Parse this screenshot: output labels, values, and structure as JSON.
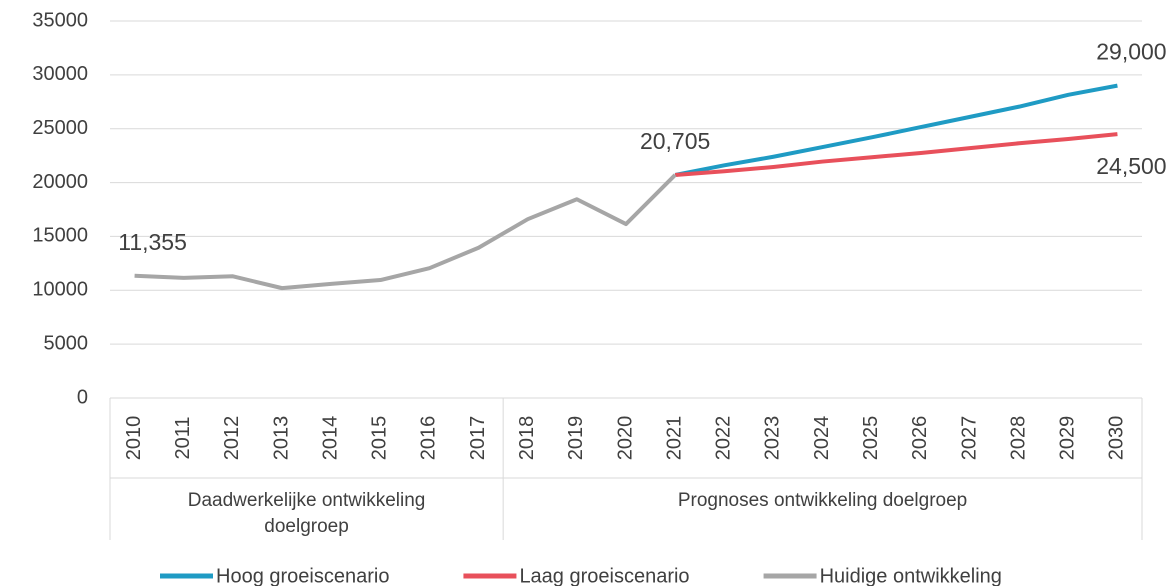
{
  "chart_data": {
    "type": "line",
    "categories": [
      "2010",
      "2011",
      "2012",
      "2013",
      "2014",
      "2015",
      "2016",
      "2017",
      "2018",
      "2019",
      "2020",
      "2021",
      "2022",
      "2023",
      "2024",
      "2025",
      "2026",
      "2027",
      "2028",
      "2029",
      "2030"
    ],
    "groups": [
      {
        "label": "Daadwerkelijke ontwikkeling doelgroep",
        "size": 8
      },
      {
        "label": "Prognoses ontwikkeling doelgroep",
        "size": 13
      }
    ],
    "series": [
      {
        "name": "Hoog groeiscenario",
        "color": "#1f9bc4",
        "values": [
          null,
          null,
          null,
          null,
          null,
          null,
          null,
          null,
          null,
          null,
          null,
          20705,
          21600,
          22400,
          23300,
          24200,
          25150,
          26100,
          27050,
          28150,
          29000
        ],
        "value_labels": [
          null,
          null,
          null,
          null,
          null,
          null,
          null,
          null,
          null,
          null,
          null,
          null,
          null,
          null,
          null,
          null,
          null,
          null,
          null,
          null,
          "29,000"
        ]
      },
      {
        "name": "Laag groeiscenario",
        "color": "#e8505b",
        "values": [
          null,
          null,
          null,
          null,
          null,
          null,
          null,
          null,
          null,
          null,
          null,
          20705,
          21050,
          21450,
          21950,
          22350,
          22750,
          23200,
          23650,
          24050,
          24500
        ],
        "value_labels": [
          null,
          null,
          null,
          null,
          null,
          null,
          null,
          null,
          null,
          null,
          null,
          null,
          null,
          null,
          null,
          null,
          null,
          null,
          null,
          null,
          "24,500"
        ]
      },
      {
        "name": "Huidige ontwikkeling",
        "color": "#a6a6a6",
        "values": [
          11355,
          11150,
          11300,
          10200,
          10600,
          10950,
          12050,
          13950,
          16600,
          18450,
          16150,
          20705,
          null,
          null,
          null,
          null,
          null,
          null,
          null,
          null,
          null
        ],
        "value_labels": [
          "11,355",
          null,
          null,
          null,
          null,
          null,
          null,
          null,
          null,
          null,
          null,
          "20,705",
          null,
          null,
          null,
          null,
          null,
          null,
          null,
          null,
          null
        ]
      }
    ],
    "ylim": [
      0,
      35000
    ],
    "yticks": [
      0,
      5000,
      10000,
      15000,
      20000,
      25000,
      30000,
      35000
    ],
    "grid": true
  }
}
